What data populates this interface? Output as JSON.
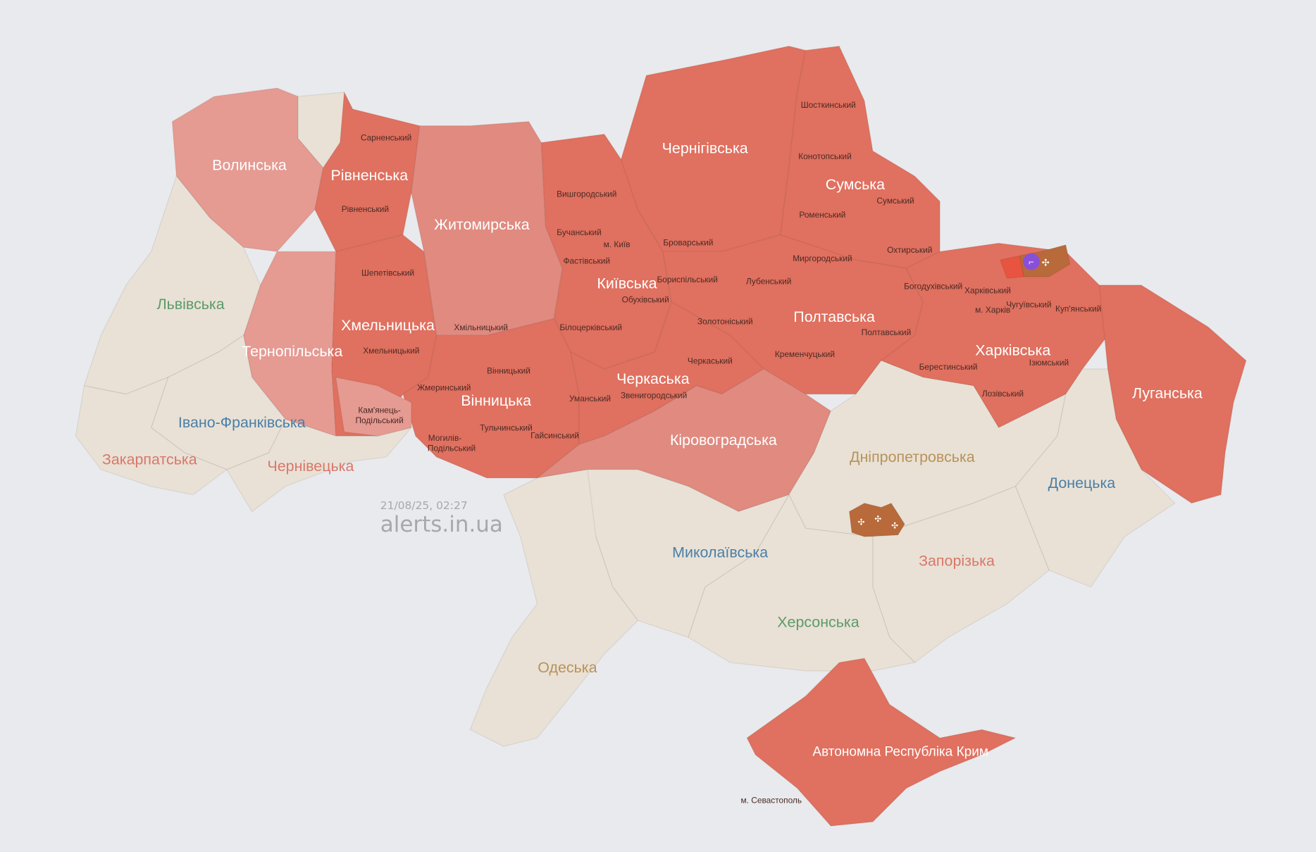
{
  "timestamp": "21/08/25, 02:27",
  "watermark": "alerts.in.ua",
  "colors": {
    "background": "#e9eaed",
    "alert": "#e0705f",
    "alert_light": "#e08a80",
    "alert_lighter": "#e59a92",
    "no_alert": "#e9e1d5",
    "combat": "#b86a3a",
    "icon_purple": "#8a4fd8"
  },
  "oblasts": {
    "volynska": {
      "label": "Волинська",
      "status": "alert"
    },
    "rivnenska": {
      "label": "Рівненська",
      "status": "alert"
    },
    "zhytomyrska": {
      "label": "Житомирська",
      "status": "alert"
    },
    "chernihivska": {
      "label": "Чернігівська",
      "status": "alert"
    },
    "sumska": {
      "label": "Сумська",
      "status": "alert"
    },
    "kyivska": {
      "label": "Київська",
      "status": "alert"
    },
    "poltavska": {
      "label": "Полтавська",
      "status": "alert"
    },
    "kharkivska": {
      "label": "Харківська",
      "status": "alert"
    },
    "luhanska": {
      "label": "Луганська",
      "status": "alert"
    },
    "khmelnytska": {
      "label": "Хмельницька",
      "status": "alert"
    },
    "ternopilska": {
      "label": "Тернопільська",
      "status": "alert"
    },
    "vinnytska": {
      "label": "Вінницька",
      "status": "alert"
    },
    "cherkaska": {
      "label": "Черкаська",
      "status": "alert"
    },
    "kirovohradska": {
      "label": "Кіровоградська",
      "status": "alert"
    },
    "lvivska": {
      "label": "Львівська",
      "status": "none"
    },
    "ivano_frankivska": {
      "label": "Івано-Франківська",
      "status": "none"
    },
    "zakarpatska": {
      "label": "Закарпатська",
      "status": "none"
    },
    "chernivetska": {
      "label": "Чернівецька",
      "status": "none"
    },
    "dnipropetrovska": {
      "label": "Дніпропетровська",
      "status": "none"
    },
    "donetska": {
      "label": "Донецька",
      "status": "none"
    },
    "mykolaivska": {
      "label": "Миколаївська",
      "status": "none"
    },
    "zaporizka": {
      "label": "Запорізька",
      "status": "none"
    },
    "khersonska": {
      "label": "Херсонська",
      "status": "none"
    },
    "odeska": {
      "label": "Одеська",
      "status": "none"
    },
    "crimea": {
      "label": "Автономна Республіка Крим",
      "status": "alert"
    }
  },
  "raions": [
    "Сарненський",
    "Рівненський",
    "Шепетівський",
    "Хмельницький",
    "Кам'янець-",
    "Подільський",
    "Хмільницький",
    "Вінницький",
    "Жмеринський",
    "Могилів-",
    "Подільський",
    "Тульчинський",
    "Гайсинський",
    "Вишгородський",
    "Бучанський",
    "м. Київ",
    "Фастівський",
    "Броварський",
    "Бориспільський",
    "Обухівський",
    "Білоцерківський",
    "Золотоніський",
    "Черкаський",
    "Уманський",
    "Звенигородський",
    "Шосткинський",
    "Конотопський",
    "Роменський",
    "Сумський",
    "Охтирський",
    "Миргородський",
    "Лубенський",
    "Полтавський",
    "Кременчуцький",
    "Богодухівський",
    "Харківський",
    "м. Харків",
    "Чугуївський",
    "Куп'янський",
    "Ізюмський",
    "Берестинський",
    "Лозівський",
    "м. Севастополь"
  ],
  "markers": [
    {
      "icon": "rifle-icon"
    },
    {
      "icon": "artillery-icon"
    }
  ]
}
